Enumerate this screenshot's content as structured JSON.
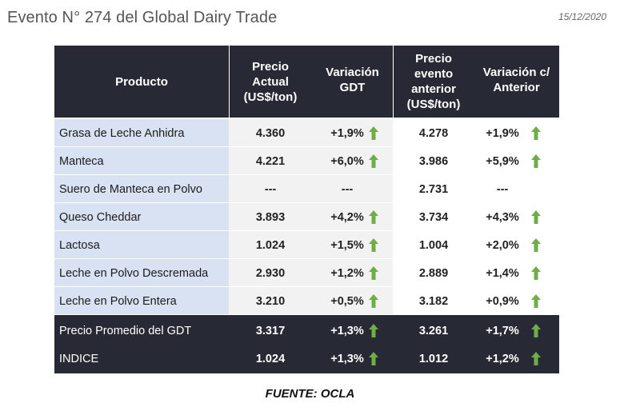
{
  "page": {
    "title": "Evento N° 274 del Global Dairy Trade",
    "date": "15/12/2020",
    "source": "FUENTE: OCLA"
  },
  "table": {
    "headers": {
      "producto": "Producto",
      "precio_actual": [
        "Precio",
        "Actual",
        "(US$/ton)"
      ],
      "variacion_gdt": [
        "Variación",
        "GDT"
      ],
      "precio_anterior": [
        "Precio",
        "evento",
        "anterior",
        "(US$/ton)"
      ],
      "variacion_anterior": [
        "Variación c/",
        "Anterior"
      ]
    },
    "rows": [
      {
        "producto": "Grasa de Leche Anhidra",
        "precio_actual": "4.360",
        "variacion_gdt": "+1,9%",
        "precio_anterior": "4.278",
        "variacion_anterior": "+1,9%"
      },
      {
        "producto": "Manteca",
        "precio_actual": "4.221",
        "variacion_gdt": "+6,0%",
        "precio_anterior": "3.986",
        "variacion_anterior": "+5,9%"
      },
      {
        "producto": "Suero de Manteca en Polvo",
        "precio_actual": "---",
        "variacion_gdt": "---",
        "precio_anterior": "2.731",
        "variacion_anterior": "---"
      },
      {
        "producto": "Queso Cheddar",
        "precio_actual": "3.893",
        "variacion_gdt": "+4,2%",
        "precio_anterior": "3.734",
        "variacion_anterior": "+4,3%"
      },
      {
        "producto": "Lactosa",
        "precio_actual": "1.024",
        "variacion_gdt": "+1,5%",
        "precio_anterior": "1.004",
        "variacion_anterior": "+2,0%"
      },
      {
        "producto": "Leche en Polvo Descremada",
        "precio_actual": "2.930",
        "variacion_gdt": "+1,2%",
        "precio_anterior": "2.889",
        "variacion_anterior": "+1,4%"
      },
      {
        "producto": "Leche en Polvo Entera",
        "precio_actual": "3.210",
        "variacion_gdt": "+0,5%",
        "precio_anterior": "3.182",
        "variacion_anterior": "+0,9%"
      }
    ],
    "footer_rows": [
      {
        "producto": "Precio Promedio del GDT",
        "precio_actual": "3.317",
        "variacion_gdt": "+1,3%",
        "precio_anterior": "3.261",
        "variacion_anterior": "+1,7%"
      },
      {
        "producto": "INDICE",
        "precio_actual": "1.024",
        "variacion_gdt": "+1,3%",
        "precio_anterior": "1.012",
        "variacion_anterior": "+1,2%"
      }
    ]
  },
  "icons": {
    "increase": "up-arrow-icon"
  },
  "colors": {
    "header_bg": "#272a35",
    "name_col_bg": "#d9e2f3",
    "current_col_bg": "#f2f2f2",
    "arrow_green": "#70ad47"
  }
}
